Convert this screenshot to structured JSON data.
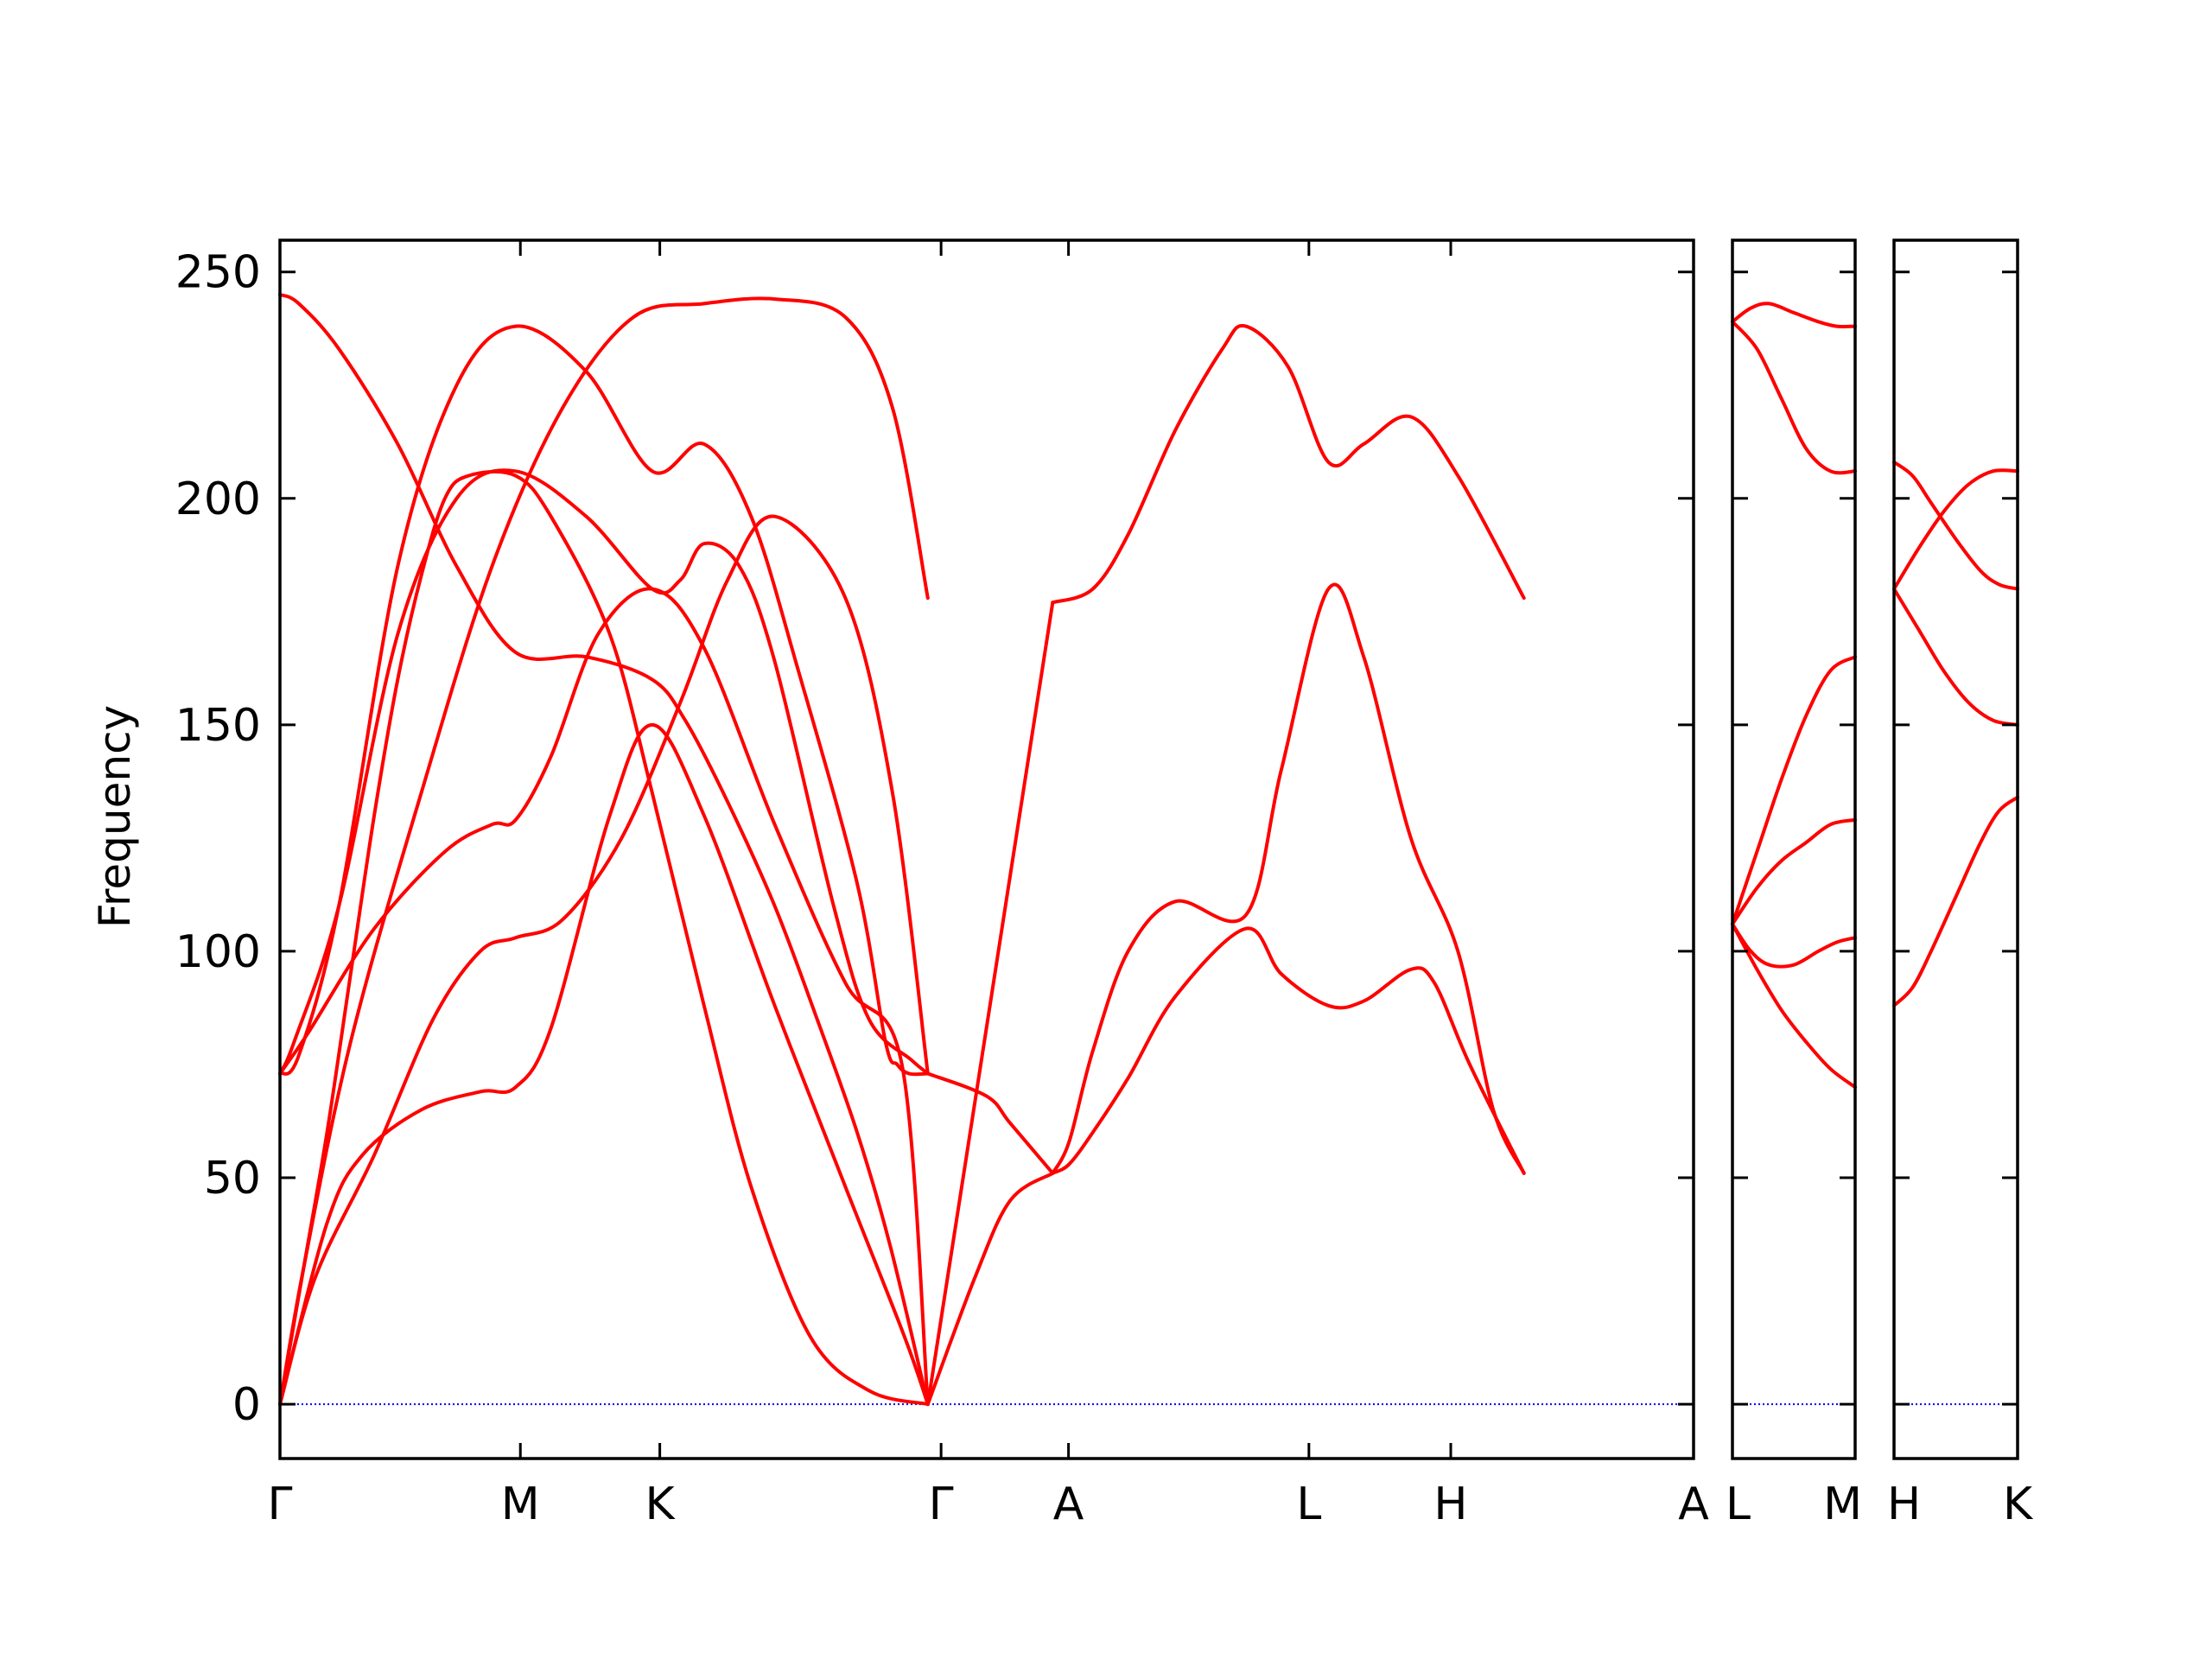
{
  "chart_data": {
    "type": "line",
    "title": "",
    "xlabel": "",
    "ylabel": "Frequency",
    "ylim": [
      -12,
      250
    ],
    "yticks": [
      0,
      50,
      100,
      150,
      200,
      250
    ],
    "grid": false,
    "series_color": "#ff0000",
    "zero_line_color": "#0000ff",
    "panels": [
      {
        "path_labels": [
          "Γ",
          "M",
          "K",
          "Γ",
          "A",
          "L",
          "H",
          "A"
        ],
        "branches": [
          {
            "x": [
              0,
              0.08,
              0.25,
              0.5,
              0.75,
              1,
              1.3,
              1.58,
              1.72,
              1.9,
              2.1,
              2.28,
              2.45,
              2.59,
              2.75
            ],
            "y": [
              245,
              243,
              233,
              212,
              185,
              166,
              165,
              160,
              151,
              133,
              110,
              85,
              60,
              35,
              0
            ]
          },
          {
            "x": [
              0,
              0.08,
              0.25,
              0.5,
              0.75,
              1,
              1.3,
              1.58,
              1.8,
              2.0,
              2.2,
              2.45,
              2.57,
              2.62,
              2.67,
              2.75
            ],
            "y": [
              73,
              77,
              110,
              185,
              225,
              238,
              228,
              206,
              212,
              196,
              162,
              115,
              80,
              75,
              73,
              73
            ]
          },
          {
            "x": [
              0,
              0.06,
              0.25,
              0.5,
              0.75,
              1,
              1.3,
              1.58,
              1.7,
              1.8,
              1.95,
              2.1,
              2.35,
              2.5,
              2.68,
              2.75
            ],
            "y": [
              73,
              80,
              110,
              170,
              200,
              206,
              196,
              180,
              182,
              190,
              185,
              164,
              110,
              85,
              76,
              73
            ]
          },
          {
            "x": [
              0,
              0.12,
              0.4,
              0.7,
              0.9,
              1,
              1.15,
              1.35,
              1.58,
              1.8,
              2.1,
              2.4,
              2.64,
              2.75
            ],
            "y": [
              73,
              82,
              105,
              122,
              128,
              129,
              143,
              170,
              180,
              167,
              128,
              93,
              75,
              0
            ]
          },
          {
            "x": [
              0,
              0.2,
              0.35,
              0.6,
              0.85,
              1,
              1.15,
              1.4,
              1.58,
              1.8,
              2.1,
              2.4,
              2.65,
              2.75
            ],
            "y": [
              0,
              40,
              55,
              65,
              69,
              70,
              83,
              130,
              150,
              130,
              88,
              48,
              15,
              0
            ]
          },
          {
            "x": [
              0,
              0.15,
              0.4,
              0.65,
              0.85,
              1,
              1.2,
              1.45,
              1.7,
              1.9,
              2.1,
              2.4,
              2.6,
              2.75
            ],
            "y": [
              0,
              28,
              55,
              85,
              100,
              103,
              107,
              125,
              155,
              182,
              196,
              178,
              135,
              73
            ]
          },
          {
            "x": [
              0,
              0.1,
              0.2,
              0.3,
              0.4,
              0.5,
              0.6,
              0.7,
              0.8,
              1,
              1.15,
              1.4,
              1.58,
              1.8,
              2.0,
              2.25,
              2.5,
              2.75
            ],
            "y": [
              0,
              30,
              60,
              95,
              130,
              160,
              183,
              200,
              205,
              205,
              196,
              170,
              135,
              88,
              48,
              15,
              3,
              0
            ]
          },
          {
            "x": [
              2.75,
              2.95,
              3.1,
              3.28
            ],
            "y": [
              0,
              28,
              45,
              51
            ]
          },
          {
            "x": [
              2.75,
              3.0,
              3.1,
              3.28
            ],
            "y": [
              73,
              68,
              62,
              51
            ]
          },
          {
            "x": [
              2.75,
              3.28
            ],
            "y": [
              0,
              177
            ]
          },
          {
            "x": [
              0,
              0.1,
              0.3,
              0.6,
              0.9,
              1.2,
              1.5,
              1.8,
              2.1,
              2.4,
              2.6,
              2.75
            ],
            "y": [
              0,
              30,
              80,
              135,
              185,
              220,
              240,
              243,
              244,
              240,
              220,
              178
            ]
          },
          {
            "x": [
              3.28,
              3.45,
              3.6,
              3.8,
              4.0,
              4.1,
              4.28,
              4.45,
              4.6,
              4.8,
              5.0,
              5.28
            ],
            "y": [
              177,
              180,
              192,
              215,
              233,
              238,
              229,
              208,
              212,
              218,
              205,
              178
            ]
          },
          {
            "x": [
              3.28,
              3.35,
              3.45,
              3.6,
              3.8,
              4.1,
              4.25,
              4.45,
              4.6,
              4.8,
              5.0,
              5.15,
              5.28
            ],
            "y": [
              51,
              58,
              78,
              100,
              111,
              108,
              140,
              180,
              165,
              125,
              100,
              65,
              51
            ]
          },
          {
            "x": [
              3.28,
              3.35,
              3.45,
              3.6,
              3.8,
              4.1,
              4.25,
              4.45,
              4.6,
              4.8,
              4.9,
              5.05,
              5.28
            ],
            "y": [
              51,
              53,
              60,
              72,
              90,
              105,
              95,
              88,
              89,
              96,
              93,
              75,
              51
            ]
          }
        ],
        "x_ticks": [
          0,
          1,
          1.58,
          2.75,
          3.28,
          4.28,
          4.87,
          5.88
        ],
        "xlim": [
          0,
          6
        ]
      },
      {
        "path_labels": [
          "L",
          "M"
        ],
        "branches": [
          {
            "x": [
              0,
              0.15,
              0.3,
              0.5,
              0.7,
              0.85,
              1
            ],
            "y": [
              239,
              242,
              243,
              241,
              239,
              238,
              238
            ]
          },
          {
            "x": [
              0,
              0.2,
              0.4,
              0.6,
              0.8,
              1
            ],
            "y": [
              239,
              233,
              222,
              211,
              206,
              206
            ]
          },
          {
            "x": [
              0,
              0.2,
              0.4,
              0.6,
              0.8,
              1
            ],
            "y": [
              106,
              122,
              138,
              152,
              162,
              165
            ]
          },
          {
            "x": [
              0,
              0.2,
              0.4,
              0.6,
              0.8,
              1
            ],
            "y": [
              106,
              114,
              120,
              124,
              128,
              129
            ]
          },
          {
            "x": [
              0,
              0.15,
              0.3,
              0.5,
              0.7,
              0.85,
              1
            ],
            "y": [
              106,
              100,
              97,
              97,
              100,
              102,
              103
            ]
          },
          {
            "x": [
              0,
              0.2,
              0.4,
              0.6,
              0.8,
              1
            ],
            "y": [
              106,
              96,
              87,
              80,
              74,
              70
            ]
          }
        ],
        "xlim": [
          0,
          1
        ]
      },
      {
        "path_labels": [
          "H",
          "K"
        ],
        "branches": [
          {
            "x": [
              0,
              0.15,
              0.3,
              0.5,
              0.7,
              0.85,
              1
            ],
            "y": [
              208,
              205,
              199,
              191,
              184,
              181,
              180
            ]
          },
          {
            "x": [
              0,
              0.2,
              0.4,
              0.6,
              0.8,
              1
            ],
            "y": [
              180,
              189,
              197,
              203,
              206,
              206
            ]
          },
          {
            "x": [
              0,
              0.2,
              0.4,
              0.6,
              0.8,
              1
            ],
            "y": [
              180,
              171,
              162,
              155,
              151,
              150
            ]
          },
          {
            "x": [
              0,
              0.15,
              0.3,
              0.5,
              0.7,
              0.85,
              1
            ],
            "y": [
              88,
              92,
              100,
              112,
              124,
              131,
              134
            ]
          }
        ],
        "xlim": [
          0,
          1
        ]
      }
    ]
  }
}
